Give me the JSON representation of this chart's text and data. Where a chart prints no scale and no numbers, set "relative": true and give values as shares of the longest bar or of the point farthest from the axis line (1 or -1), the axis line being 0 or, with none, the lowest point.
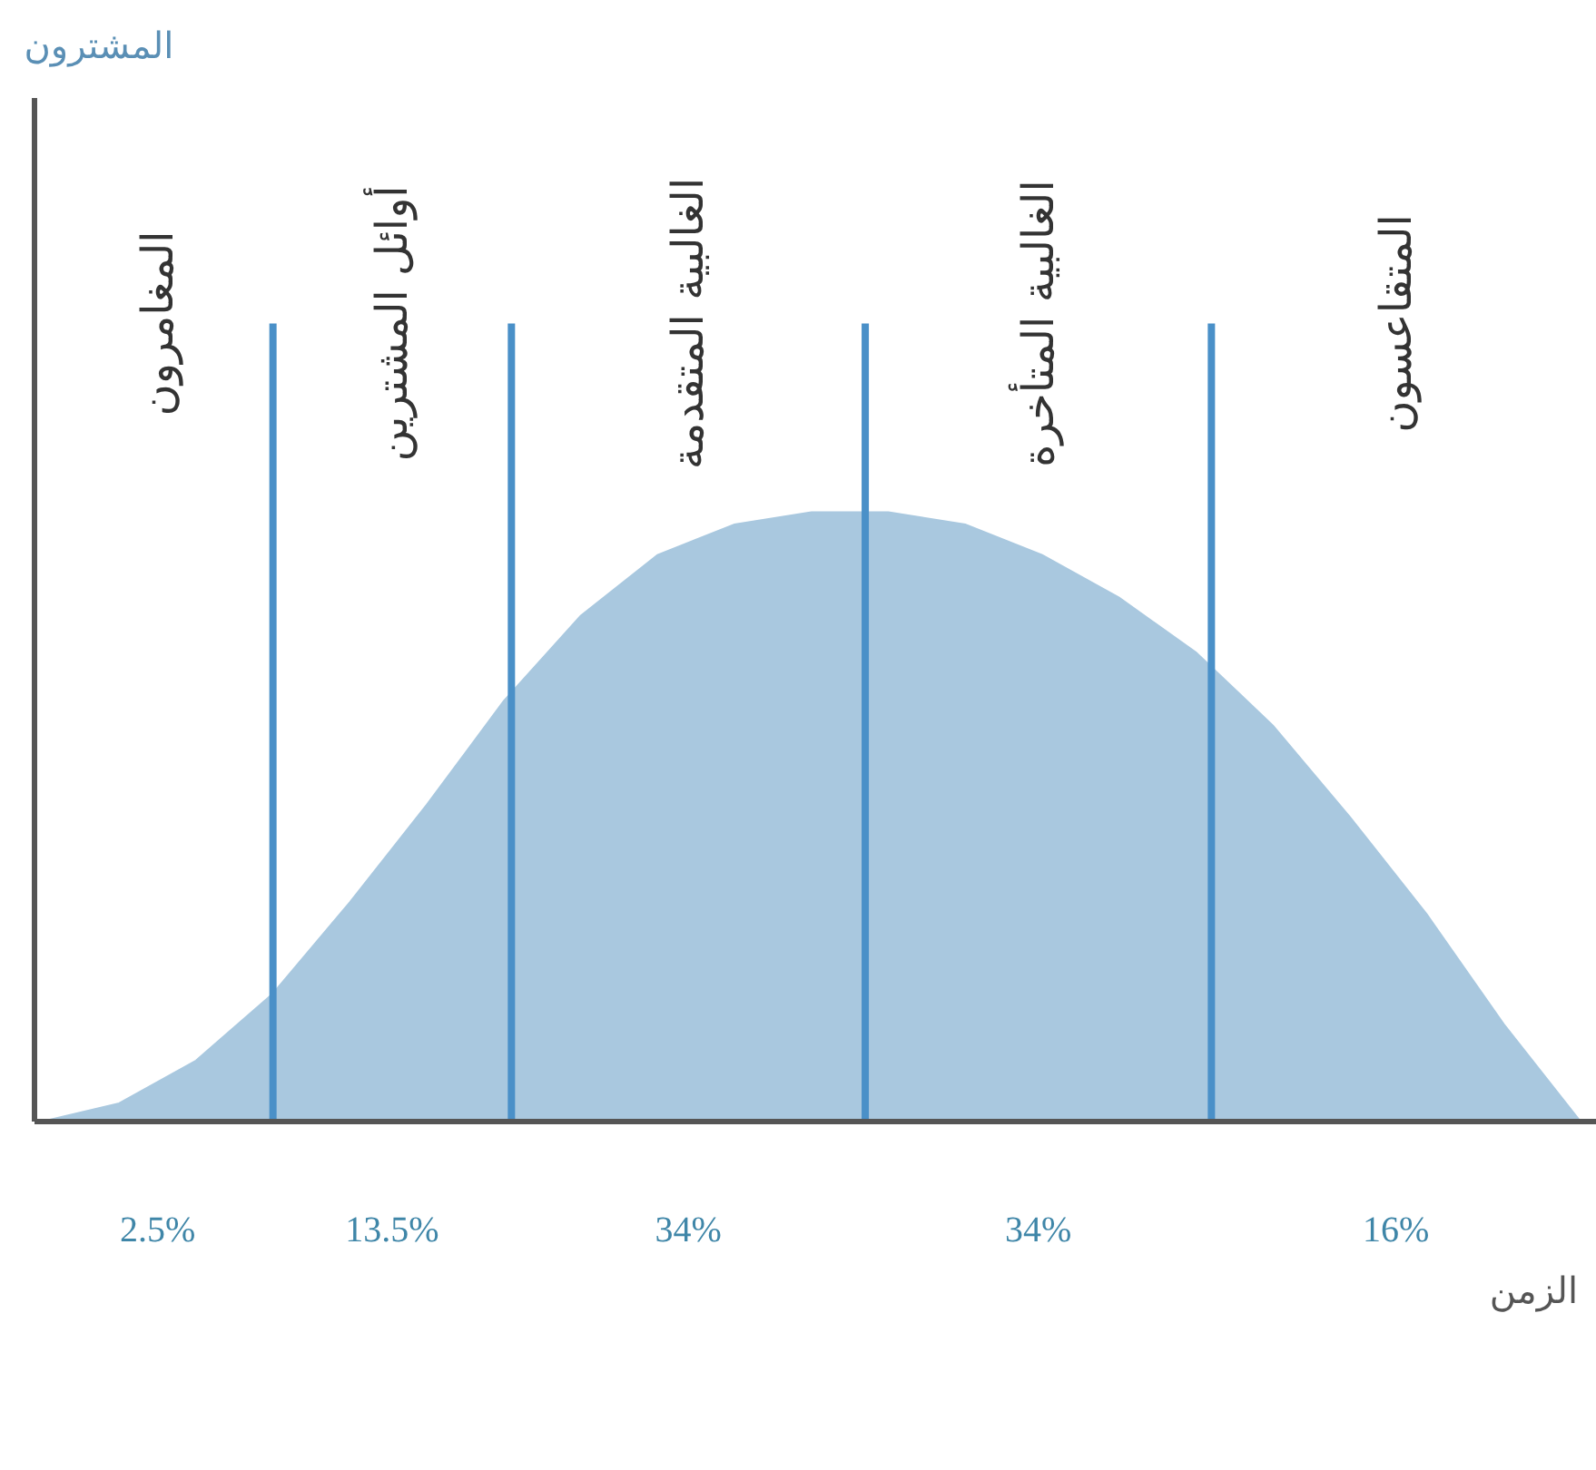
{
  "chart_data": {
    "type": "area",
    "relative": true,
    "xlabel": "الزمن",
    "categories": [
      null,
      null,
      null,
      null,
      null,
      null,
      null,
      null,
      null,
      null,
      null,
      null,
      null,
      null,
      null,
      null,
      null,
      null,
      null,
      null,
      null
    ],
    "series": [
      {
        "color": "#a9c8df",
        "values": [
          0,
          0.03,
          0.1,
          0.21,
          0.36,
          0.52,
          0.69,
          0.83,
          0.93,
          0.98,
          1,
          1,
          0.98,
          0.93,
          0.86,
          0.77,
          0.65,
          0.5,
          0.34,
          0.16,
          0
        ]
      }
    ],
    "annotations": [
      "المغامرون",
      "أوائل المشترين",
      "الغالبية المتقدمة",
      "الغالبية المتأخرة",
      "المتقاعسون",
      "2.5%",
      "13.5%",
      "34%",
      "34%",
      "16%",
      "المشترون"
    ]
  }
}
